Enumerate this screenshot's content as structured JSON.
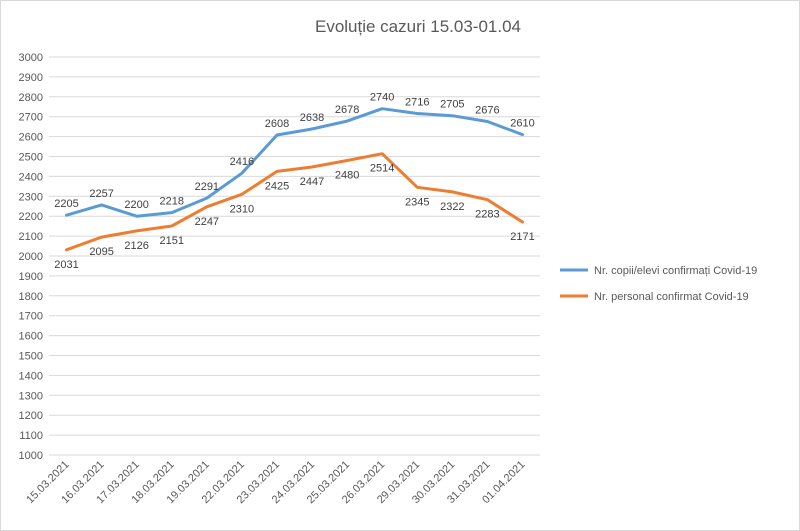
{
  "chart_data": {
    "type": "line",
    "title": "Evoluție cazuri 15.03-01.04",
    "xlabel": "",
    "ylabel": "",
    "ylim": [
      1000,
      3000
    ],
    "ytick_step": 100,
    "grid": true,
    "legend_position": "right",
    "categories": [
      "15.03.2021",
      "16.03.2021",
      "17.03.2021",
      "18.03.2021",
      "19.03.2021",
      "22.03.2021",
      "23.03.2021",
      "24.03.2021",
      "25.03.2021",
      "26.03.2021",
      "29.03.2021",
      "30.03.2021",
      "31.03.2021",
      "01.04.2021"
    ],
    "series": [
      {
        "name": "Nr. copii/elevi confirmați Covid-19",
        "color": "#5B9BD5",
        "label_position": "above",
        "values": [
          2205,
          2257,
          2200,
          2218,
          2291,
          2416,
          2608,
          2638,
          2678,
          2740,
          2716,
          2705,
          2676,
          2610
        ]
      },
      {
        "name": "Nr. personal confirmat Covid-19",
        "color": "#ED7D31",
        "label_position": "below",
        "values": [
          2031,
          2095,
          2126,
          2151,
          2247,
          2310,
          2425,
          2447,
          2480,
          2514,
          2345,
          2322,
          2283,
          2171
        ]
      }
    ]
  }
}
